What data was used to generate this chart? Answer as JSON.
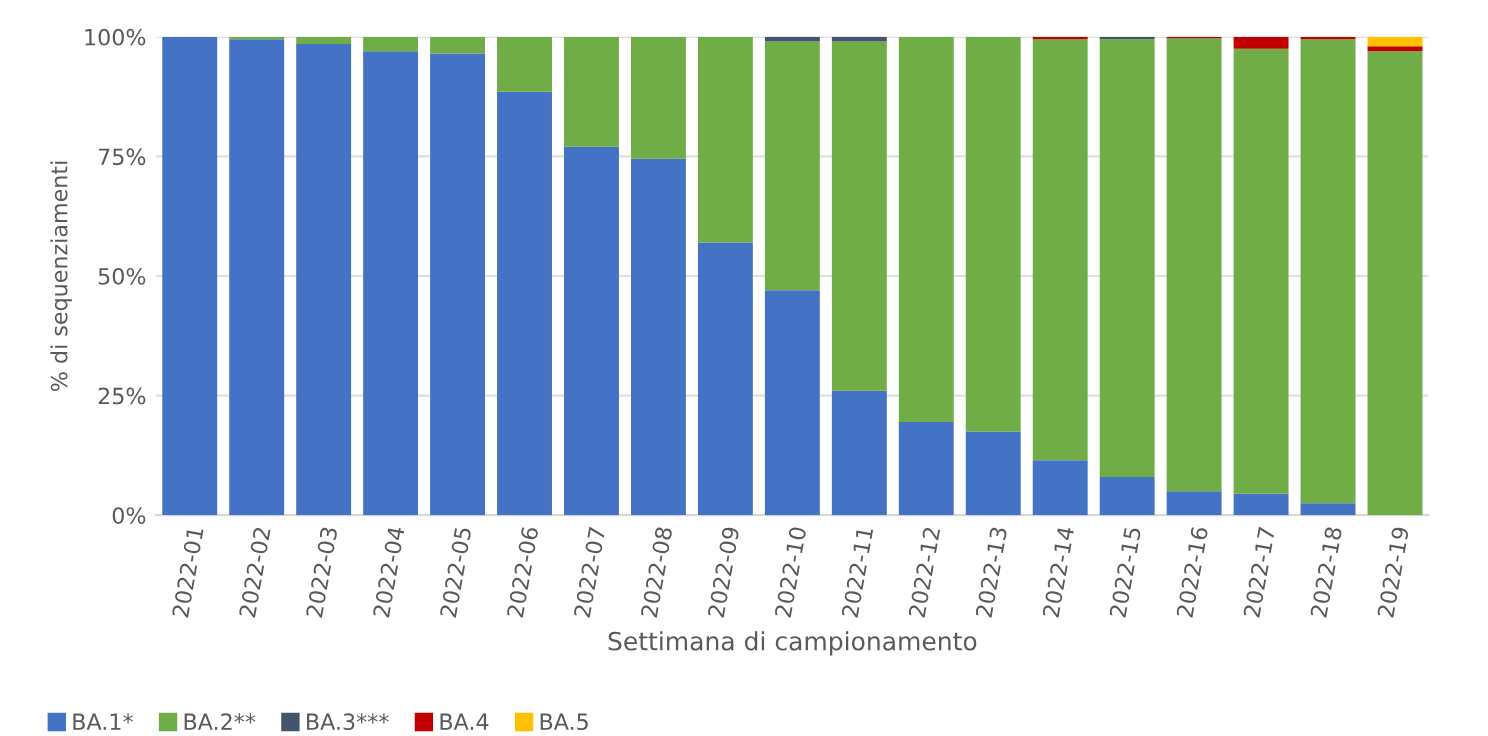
{
  "chart_data": {
    "type": "bar",
    "stacked": true,
    "categories": [
      "2022-01",
      "2022-02",
      "2022-03",
      "2022-04",
      "2022-05",
      "2022-06",
      "2022-07",
      "2022-08",
      "2022-09",
      "2022-10",
      "2022-11",
      "2022-12",
      "2022-13",
      "2022-14",
      "2022-15",
      "2022-16",
      "2022-17",
      "2022-18",
      "2022-19"
    ],
    "series": [
      {
        "name": "BA.1*",
        "color": "#4472c4",
        "values": [
          100,
          99.5,
          98.5,
          97,
          96.5,
          88.5,
          77,
          74.5,
          57,
          47,
          26,
          19.5,
          17.5,
          11.5,
          8,
          5,
          4.5,
          2.5,
          0
        ]
      },
      {
        "name": "BA.2**",
        "color": "#70ad47",
        "values": [
          0,
          0.5,
          1.5,
          3,
          3.5,
          11.5,
          23,
          25.5,
          43,
          52,
          73,
          80.5,
          82.5,
          88,
          91.5,
          94.7,
          93,
          97,
          97
        ]
      },
      {
        "name": "BA.3***",
        "color": "#44546a",
        "values": [
          0,
          0,
          0,
          0,
          0,
          0,
          0,
          0,
          0,
          1,
          1,
          0,
          0,
          0,
          0.5,
          0,
          0,
          0,
          0
        ]
      },
      {
        "name": "BA.4",
        "color": "#c00000",
        "values": [
          0,
          0,
          0,
          0,
          0,
          0,
          0,
          0,
          0,
          0,
          0,
          0,
          0,
          0.5,
          0,
          0.3,
          2.5,
          0.5,
          1
        ]
      },
      {
        "name": "BA.5",
        "color": "#ffc000",
        "values": [
          0,
          0,
          0,
          0,
          0,
          0,
          0,
          0,
          0,
          0,
          0,
          0,
          0,
          0,
          0,
          0,
          0,
          0,
          2
        ]
      }
    ],
    "xlabel": "Settimana di campionamento",
    "ylabel": "% di sequenziamenti",
    "ylim": [
      0,
      100
    ],
    "yticks": [
      {
        "value": 0,
        "label": "0%"
      },
      {
        "value": 25,
        "label": "25%"
      },
      {
        "value": 50,
        "label": "50%"
      },
      {
        "value": 75,
        "label": "75%"
      },
      {
        "value": 100,
        "label": "100%"
      }
    ],
    "grid": "y",
    "legend": "bottom left"
  }
}
